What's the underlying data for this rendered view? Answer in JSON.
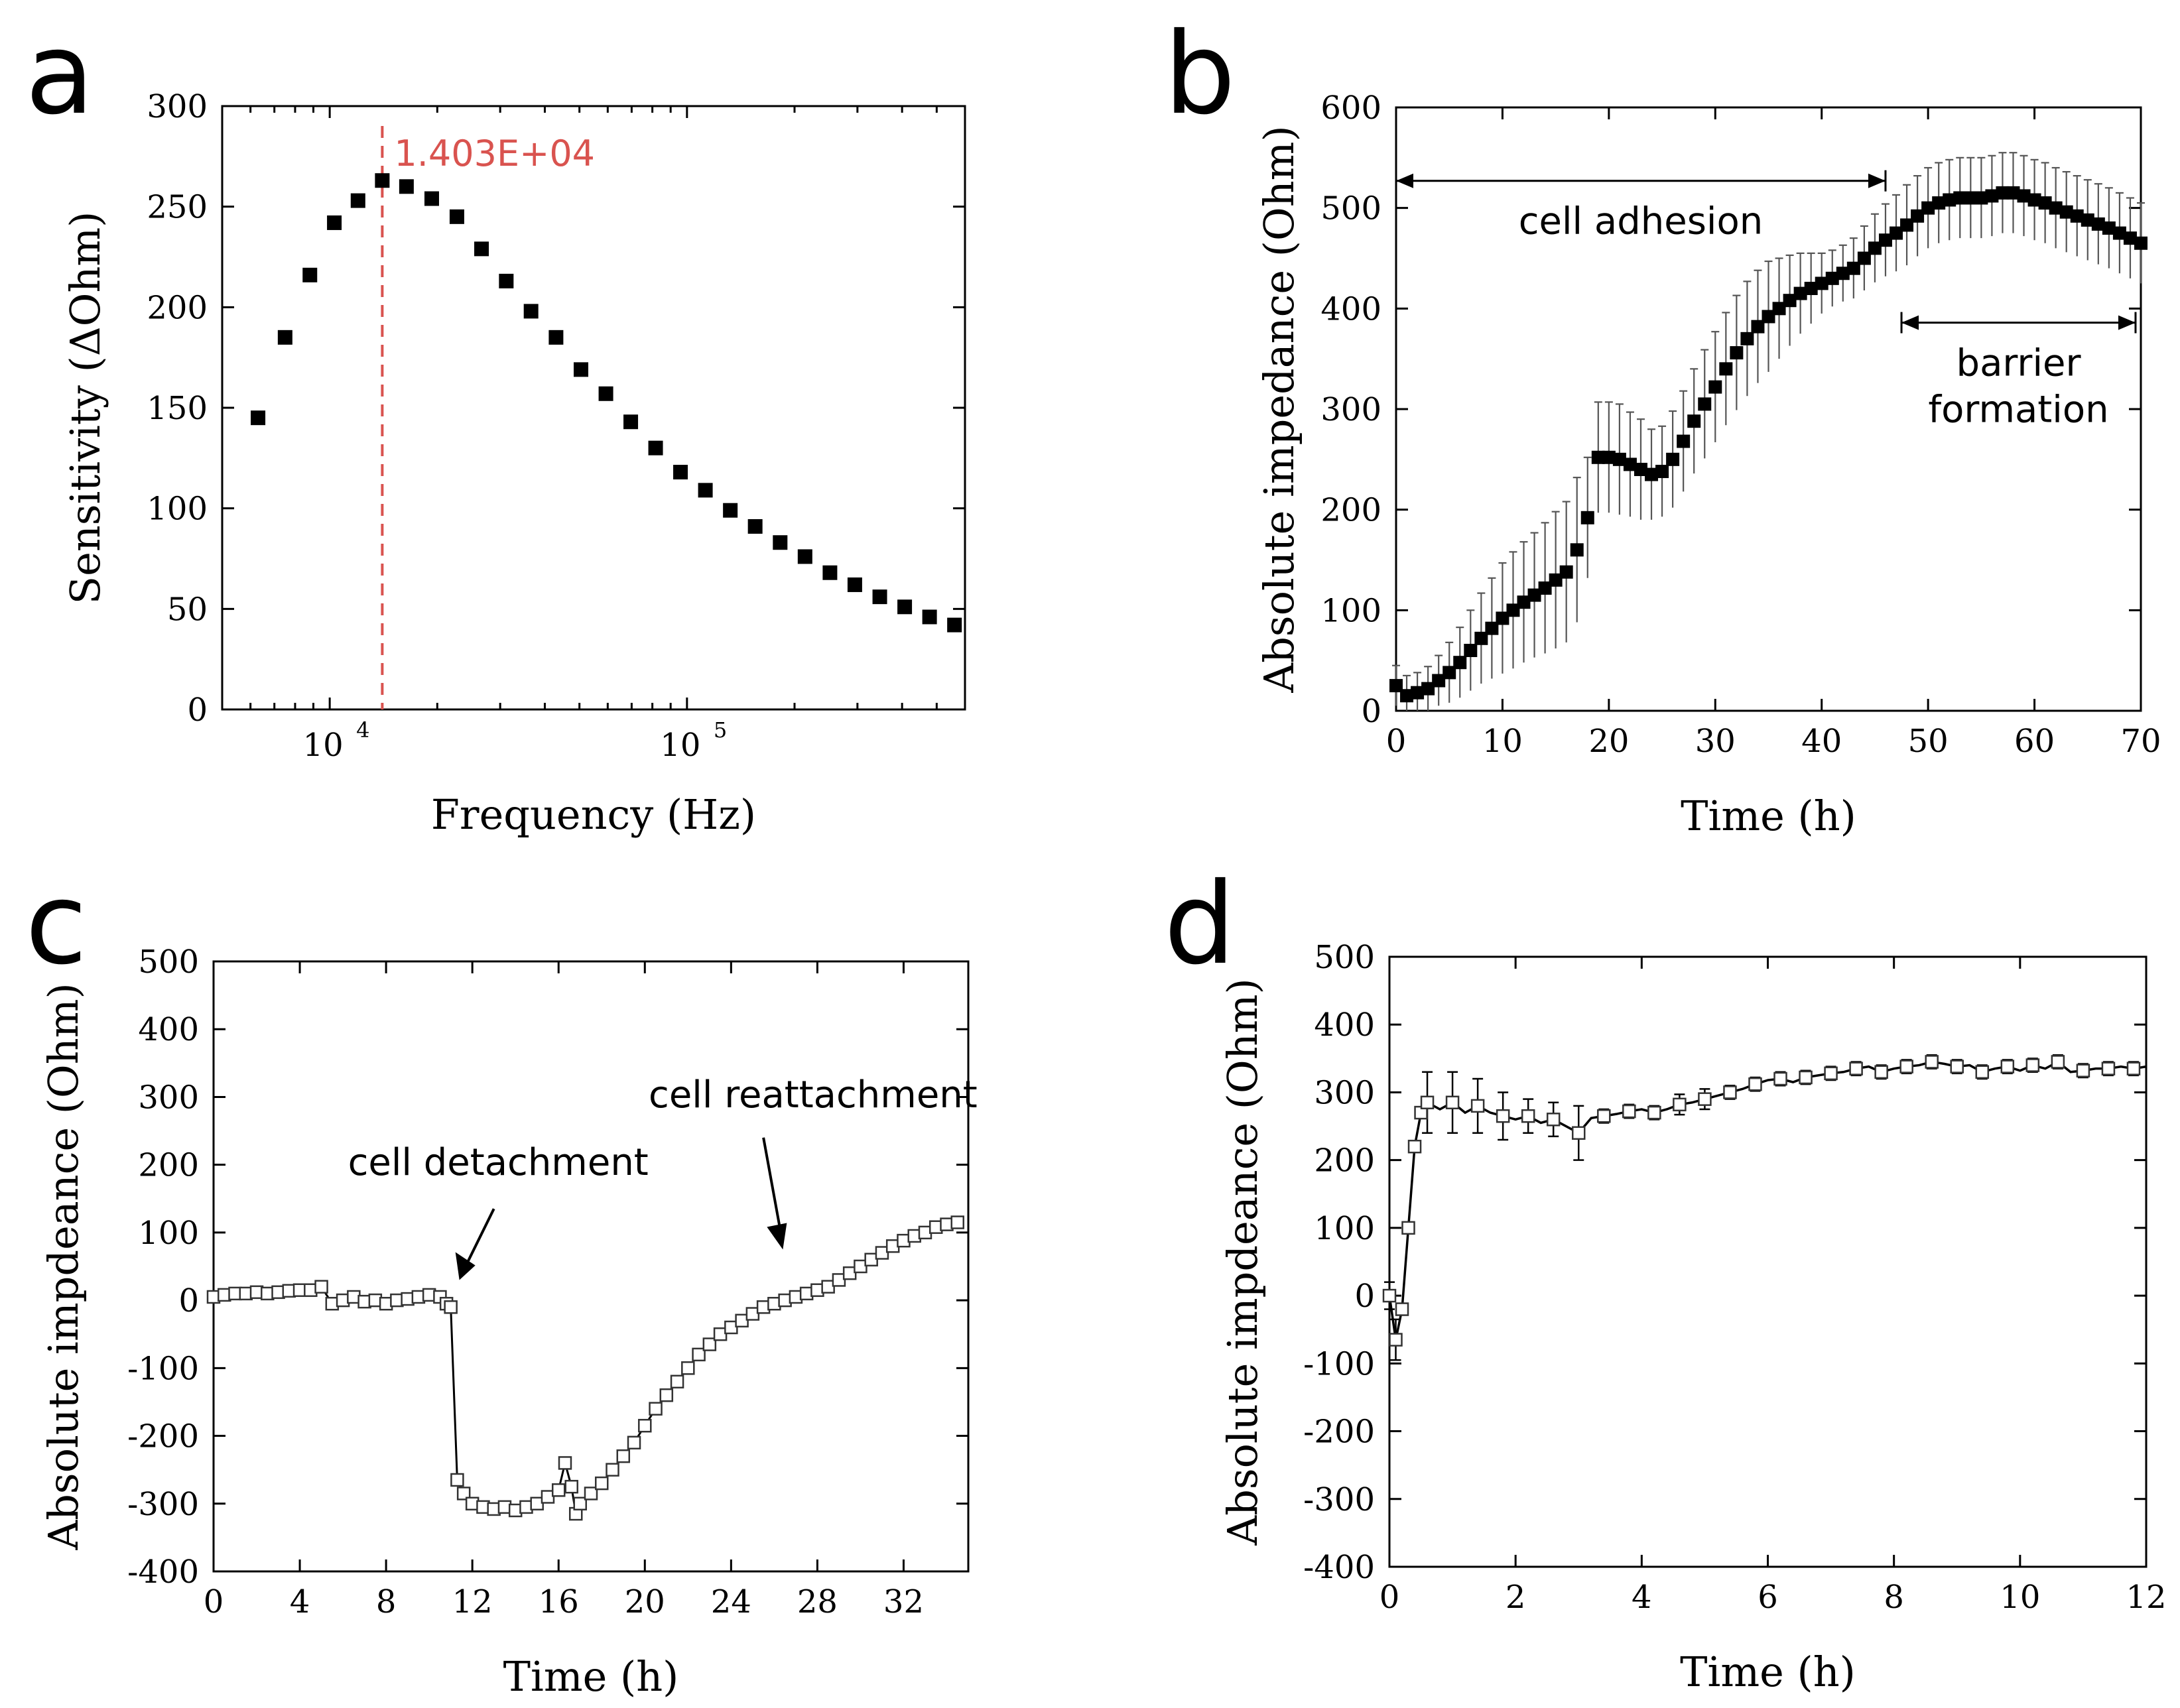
{
  "chart_data": [
    {
      "panel": "a",
      "type": "scatter",
      "title": "",
      "xlabel": "Frequency (Hz)",
      "ylabel": "Sensitivity (ΔOhm)",
      "xscale": "log",
      "xlim": [
        5000,
        600000
      ],
      "ylim": [
        0,
        300
      ],
      "yticks": [
        0,
        50,
        100,
        150,
        200,
        250,
        300
      ],
      "xticks": [
        {
          "value": 10000,
          "base": "10",
          "exp": "4"
        },
        {
          "value": 100000,
          "base": "10",
          "exp": "5"
        }
      ],
      "x": [
        6300,
        7500,
        8800,
        10300,
        12000,
        14030,
        16400,
        19300,
        22700,
        26600,
        31200,
        36600,
        43000,
        50500,
        59300,
        69600,
        81700,
        95900,
        112600,
        132200,
        155200,
        182300,
        214000,
        251300,
        295000,
        346500,
        406800,
        477600,
        560700
      ],
      "y": [
        145,
        185,
        216,
        242,
        253,
        263,
        260,
        254,
        245,
        229,
        213,
        198,
        185,
        169,
        157,
        143,
        130,
        118,
        109,
        99,
        91,
        83,
        76,
        68,
        62,
        56,
        51,
        46,
        42
      ],
      "marker": "filled-square",
      "vline": {
        "x": 14030,
        "label": "1.403E+04",
        "color": "#d9534f"
      }
    },
    {
      "panel": "b",
      "type": "scatter",
      "xlabel": "Time (h)",
      "ylabel": "Absolute impedance (Ohm)",
      "xlim": [
        0,
        70
      ],
      "ylim": [
        0,
        600
      ],
      "xticks": [
        0,
        10,
        20,
        30,
        40,
        50,
        60,
        70
      ],
      "yticks": [
        0,
        100,
        200,
        300,
        400,
        500,
        600
      ],
      "marker": "filled-square",
      "series": {
        "x": [
          0,
          1,
          2,
          3,
          4,
          5,
          6,
          7,
          8,
          9,
          10,
          11,
          12,
          13,
          14,
          15,
          16,
          17,
          18,
          19,
          20,
          21,
          22,
          23,
          24,
          25,
          26,
          27,
          28,
          29,
          30,
          31,
          32,
          33,
          34,
          35,
          36,
          37,
          38,
          39,
          40,
          41,
          42,
          43,
          44,
          45,
          46,
          47,
          48,
          49,
          50,
          51,
          52,
          53,
          54,
          55,
          56,
          57,
          58,
          59,
          60,
          61,
          62,
          63,
          64,
          65,
          66,
          67,
          68,
          69,
          70
        ],
        "y": [
          25,
          15,
          18,
          22,
          30,
          38,
          48,
          60,
          72,
          82,
          92,
          100,
          108,
          115,
          122,
          130,
          138,
          160,
          192,
          252,
          252,
          250,
          245,
          240,
          235,
          238,
          250,
          268,
          288,
          305,
          322,
          340,
          356,
          370,
          382,
          392,
          400,
          408,
          415,
          420,
          425,
          430,
          435,
          440,
          450,
          460,
          468,
          475,
          483,
          492,
          500,
          505,
          508,
          510,
          510,
          510,
          512,
          515,
          515,
          512,
          508,
          505,
          500,
          496,
          492,
          488,
          484,
          480,
          475,
          470,
          465
        ],
        "err": [
          20,
          20,
          20,
          22,
          25,
          30,
          35,
          40,
          45,
          50,
          55,
          58,
          60,
          62,
          65,
          68,
          70,
          72,
          60,
          55,
          55,
          55,
          52,
          50,
          45,
          45,
          48,
          50,
          52,
          54,
          55,
          56,
          57,
          57,
          56,
          55,
          50,
          45,
          40,
          35,
          30,
          28,
          28,
          30,
          32,
          34,
          36,
          38,
          40,
          40,
          40,
          40,
          40,
          40,
          40,
          40,
          40,
          40,
          40,
          40,
          40,
          40,
          40,
          40,
          40,
          40,
          40,
          40,
          40,
          40,
          40
        ]
      },
      "annotations": [
        {
          "text": "cell adhesion",
          "from": 0,
          "to": 46,
          "y": 527
        },
        {
          "text": "barrier",
          "text2": "formation",
          "from": 47.5,
          "to": 69.5,
          "y": 386
        }
      ]
    },
    {
      "panel": "c",
      "type": "line",
      "xlabel": "Time (h)",
      "ylabel": "Absolute impdeance (Ohm)",
      "xlim": [
        0,
        35
      ],
      "ylim": [
        -400,
        500
      ],
      "xticks": [
        0,
        4,
        8,
        12,
        16,
        20,
        24,
        28,
        32
      ],
      "yticks": [
        -400,
        -300,
        -200,
        -100,
        0,
        100,
        200,
        300,
        400,
        500
      ],
      "marker": "open-square",
      "series": {
        "x": [
          0,
          0.5,
          1,
          1.5,
          2,
          2.5,
          3,
          3.5,
          4,
          4.5,
          5,
          5.5,
          6,
          6.5,
          7,
          7.5,
          8,
          8.5,
          9,
          9.5,
          10,
          10.5,
          10.8,
          11.0,
          11.3,
          11.6,
          12,
          12.5,
          13,
          13.5,
          14,
          14.5,
          15,
          15.5,
          16,
          16.3,
          16.6,
          16.8,
          17,
          17.5,
          18,
          18.5,
          19,
          19.5,
          20,
          20.5,
          21,
          21.5,
          22,
          22.5,
          23,
          23.5,
          24,
          24.5,
          25,
          25.5,
          26,
          26.5,
          27,
          27.5,
          28,
          28.5,
          29,
          29.5,
          30,
          30.5,
          31,
          31.5,
          32,
          32.5,
          33,
          33.5,
          34,
          34.5
        ],
        "y": [
          5,
          8,
          10,
          10,
          12,
          10,
          12,
          14,
          15,
          15,
          20,
          -5,
          0,
          5,
          -2,
          0,
          -5,
          0,
          2,
          5,
          8,
          5,
          -5,
          -10,
          -265,
          -285,
          -300,
          -305,
          -308,
          -305,
          -310,
          -305,
          -300,
          -290,
          -280,
          -240,
          -275,
          -315,
          -300,
          -285,
          -270,
          -250,
          -230,
          -210,
          -185,
          -160,
          -140,
          -120,
          -100,
          -80,
          -65,
          -50,
          -40,
          -30,
          -20,
          -10,
          -5,
          0,
          5,
          10,
          15,
          20,
          30,
          40,
          50,
          60,
          70,
          80,
          88,
          95,
          100,
          108,
          112,
          115
        ]
      },
      "annotations": [
        {
          "text": "cell detachment",
          "tip_x": 11.4,
          "tip_y": 30
        },
        {
          "text": "cell reattachment",
          "tip_x": 26.4,
          "tip_y": 75
        }
      ]
    },
    {
      "panel": "d",
      "type": "line",
      "xlabel": "Time (h)",
      "ylabel": "Absolute impdeance (Ohm)",
      "xlim": [
        0,
        12
      ],
      "ylim": [
        -400,
        500
      ],
      "xticks": [
        0,
        2,
        4,
        6,
        8,
        10,
        12
      ],
      "yticks": [
        -400,
        -300,
        -200,
        -100,
        0,
        100,
        200,
        300,
        400,
        500
      ],
      "marker": "open-square",
      "series": {
        "x": [
          0,
          0.1,
          0.2,
          0.3,
          0.4,
          0.5,
          0.6,
          0.8,
          1.0,
          1.2,
          1.4,
          1.6,
          1.8,
          2.0,
          2.2,
          2.4,
          2.6,
          2.8,
          3.0,
          3.2,
          3.4,
          3.6,
          3.8,
          4.0,
          4.2,
          4.4,
          4.6,
          4.8,
          5.0,
          5.2,
          5.4,
          5.6,
          5.8,
          6.0,
          6.2,
          6.4,
          6.6,
          6.8,
          7.0,
          7.2,
          7.4,
          7.6,
          7.8,
          8.0,
          8.2,
          8.4,
          8.6,
          8.8,
          9.0,
          9.2,
          9.4,
          9.6,
          9.8,
          10.0,
          10.2,
          10.4,
          10.6,
          10.8,
          11.0,
          11.2,
          11.4,
          11.6,
          11.8,
          12.0
        ],
        "y": [
          0,
          -65,
          -20,
          100,
          220,
          270,
          285,
          275,
          285,
          270,
          280,
          270,
          265,
          260,
          265,
          255,
          260,
          250,
          240,
          262,
          265,
          268,
          272,
          275,
          270,
          275,
          282,
          285,
          290,
          295,
          300,
          305,
          312,
          318,
          320,
          315,
          322,
          325,
          328,
          330,
          335,
          338,
          330,
          335,
          338,
          340,
          345,
          342,
          338,
          340,
          330,
          335,
          338,
          332,
          340,
          335,
          345,
          330,
          332,
          335,
          335,
          338,
          335,
          338
        ],
        "err": {
          "x": [
            0,
            0.1,
            0.6,
            1.0,
            1.4,
            1.8,
            2.2,
            2.6,
            3.0,
            3.4,
            3.8,
            4.2,
            4.6,
            5.0,
            5.4,
            5.8,
            6.2,
            6.6,
            7.0,
            7.4,
            7.8,
            8.2,
            8.6,
            9.0,
            9.4,
            9.8,
            10.2,
            10.6,
            11.0,
            11.4,
            11.8
          ],
          "e": [
            20,
            30,
            45,
            45,
            40,
            35,
            25,
            25,
            40,
            10,
            10,
            10,
            15,
            15,
            10,
            10,
            10,
            10,
            10,
            10,
            10,
            10,
            10,
            10,
            10,
            10,
            10,
            10,
            10,
            10,
            10
          ]
        }
      }
    }
  ]
}
